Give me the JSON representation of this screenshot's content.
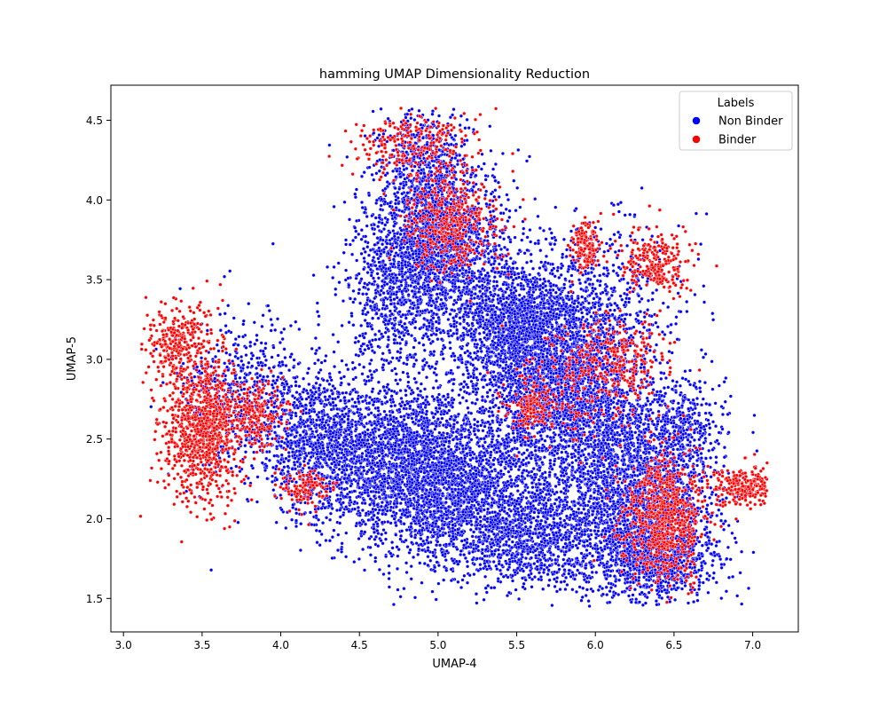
{
  "chart_data": {
    "type": "scatter",
    "title": "hamming UMAP Dimensionality Reduction",
    "xlabel": "UMAP-4",
    "ylabel": "UMAP-5",
    "xlim": [
      2.92,
      7.29
    ],
    "ylim": [
      1.29,
      4.72
    ],
    "xticks": [
      3.0,
      3.5,
      4.0,
      4.5,
      5.0,
      5.5,
      6.0,
      6.5,
      7.0
    ],
    "yticks": [
      1.5,
      2.0,
      2.5,
      3.0,
      3.5,
      4.0,
      4.5
    ],
    "grid": false,
    "legend": {
      "title": "Labels",
      "placement": "top-right",
      "entries": [
        "Non Binder",
        "Binder"
      ]
    },
    "series": [
      {
        "name": "Non Binder",
        "color": "#0000ff",
        "regions": [
          {
            "cx": 4.85,
            "cy": 2.35,
            "sx": 0.33,
            "sy": 0.24,
            "n": 2600
          },
          {
            "cx": 5.25,
            "cy": 2.05,
            "sx": 0.32,
            "sy": 0.2,
            "n": 1300
          },
          {
            "cx": 4.25,
            "cy": 2.5,
            "sx": 0.2,
            "sy": 0.22,
            "n": 1000
          },
          {
            "cx": 5.8,
            "cy": 2.85,
            "sx": 0.28,
            "sy": 0.3,
            "n": 2800
          },
          {
            "cx": 5.5,
            "cy": 3.2,
            "sx": 0.22,
            "sy": 0.22,
            "n": 1300
          },
          {
            "cx": 5.05,
            "cy": 3.7,
            "sx": 0.2,
            "sy": 0.25,
            "n": 1500
          },
          {
            "cx": 4.75,
            "cy": 3.45,
            "sx": 0.18,
            "sy": 0.3,
            "n": 900
          },
          {
            "cx": 4.9,
            "cy": 4.2,
            "sx": 0.15,
            "sy": 0.2,
            "n": 600
          },
          {
            "cx": 6.25,
            "cy": 2.15,
            "sx": 0.24,
            "sy": 0.3,
            "n": 2100
          },
          {
            "cx": 6.4,
            "cy": 1.75,
            "sx": 0.18,
            "sy": 0.14,
            "n": 700
          },
          {
            "cx": 5.65,
            "cy": 1.85,
            "sx": 0.25,
            "sy": 0.16,
            "n": 700
          },
          {
            "cx": 3.75,
            "cy": 2.8,
            "sx": 0.2,
            "sy": 0.24,
            "n": 500
          },
          {
            "cx": 6.1,
            "cy": 3.5,
            "sx": 0.25,
            "sy": 0.2,
            "n": 300
          },
          {
            "cx": 6.55,
            "cy": 2.55,
            "sx": 0.12,
            "sy": 0.15,
            "n": 300
          }
        ]
      },
      {
        "name": "Binder",
        "color": "#ff0000",
        "regions": [
          {
            "cx": 3.5,
            "cy": 2.55,
            "sx": 0.13,
            "sy": 0.22,
            "n": 900
          },
          {
            "cx": 3.35,
            "cy": 3.1,
            "sx": 0.12,
            "sy": 0.13,
            "n": 300
          },
          {
            "cx": 3.85,
            "cy": 2.65,
            "sx": 0.09,
            "sy": 0.1,
            "n": 200
          },
          {
            "cx": 6.45,
            "cy": 2.0,
            "sx": 0.13,
            "sy": 0.22,
            "n": 700
          },
          {
            "cx": 6.95,
            "cy": 2.2,
            "sx": 0.09,
            "sy": 0.06,
            "n": 250
          },
          {
            "cx": 5.93,
            "cy": 3.72,
            "sx": 0.05,
            "sy": 0.08,
            "n": 150
          },
          {
            "cx": 6.4,
            "cy": 3.6,
            "sx": 0.12,
            "sy": 0.1,
            "n": 250
          },
          {
            "cx": 6.15,
            "cy": 3.0,
            "sx": 0.14,
            "sy": 0.13,
            "n": 250
          },
          {
            "cx": 5.1,
            "cy": 3.85,
            "sx": 0.15,
            "sy": 0.15,
            "n": 400
          },
          {
            "cx": 4.85,
            "cy": 4.35,
            "sx": 0.2,
            "sy": 0.1,
            "n": 250
          },
          {
            "cx": 5.6,
            "cy": 2.7,
            "sx": 0.07,
            "sy": 0.06,
            "n": 120
          },
          {
            "cx": 4.15,
            "cy": 2.2,
            "sx": 0.08,
            "sy": 0.06,
            "n": 120
          },
          {
            "cx": 5.8,
            "cy": 2.8,
            "sx": 0.2,
            "sy": 0.18,
            "n": 150
          }
        ]
      }
    ]
  }
}
